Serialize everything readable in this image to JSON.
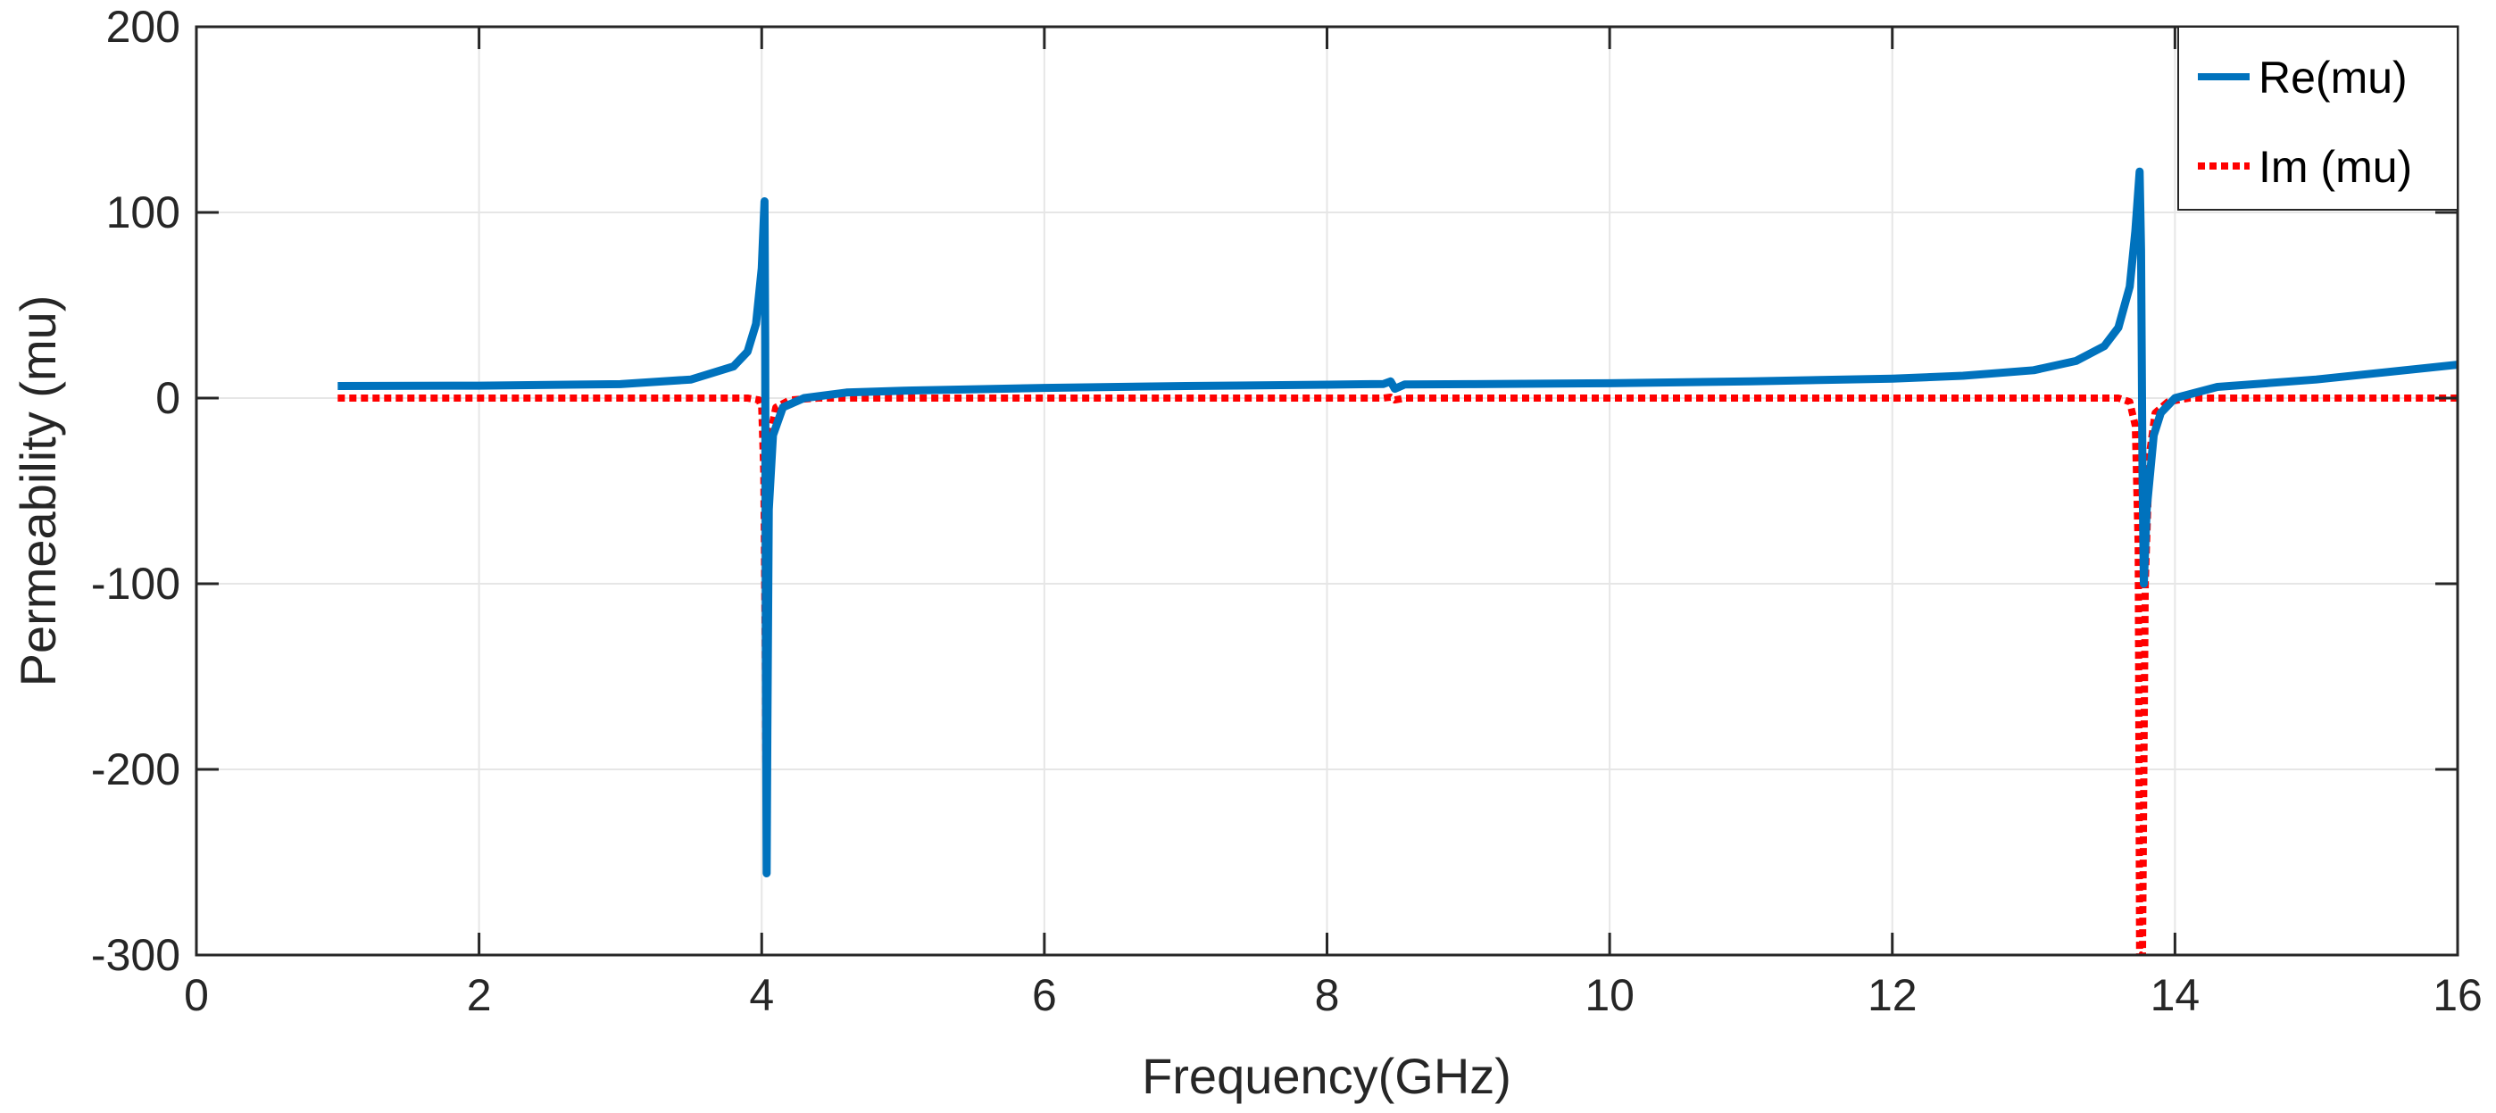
{
  "chart_data": {
    "type": "line",
    "xlabel": "Frequency(GHz)",
    "ylabel": "Permeability (mu)",
    "xlim": [
      0,
      16
    ],
    "ylim": [
      -300,
      200
    ],
    "xticks": [
      "0",
      "2",
      "4",
      "6",
      "8",
      "10",
      "12",
      "14",
      "16"
    ],
    "yticks": [
      "200",
      "100",
      "0",
      "-100",
      "-200",
      "-300"
    ],
    "grid": true,
    "legend_position": "top-right",
    "series": [
      {
        "name": "Re(mu)",
        "style": "solid",
        "color": "#0072BD",
        "points": [
          [
            1.0,
            6.5
          ],
          [
            2.0,
            6.7
          ],
          [
            3.0,
            7.5
          ],
          [
            3.5,
            10
          ],
          [
            3.8,
            17
          ],
          [
            3.9,
            25
          ],
          [
            3.96,
            40
          ],
          [
            4.0,
            70
          ],
          [
            4.02,
            106
          ],
          [
            4.025,
            30
          ],
          [
            4.03,
            -150
          ],
          [
            4.035,
            -256
          ],
          [
            4.04,
            -180
          ],
          [
            4.05,
            -60
          ],
          [
            4.08,
            -20
          ],
          [
            4.15,
            -5
          ],
          [
            4.3,
            0
          ],
          [
            4.6,
            3
          ],
          [
            5.0,
            4
          ],
          [
            6.0,
            5.5
          ],
          [
            7.0,
            6.5
          ],
          [
            8.0,
            7.2
          ],
          [
            8.4,
            7.6
          ],
          [
            8.45,
            9
          ],
          [
            8.48,
            5
          ],
          [
            8.55,
            7.3
          ],
          [
            9.0,
            7.5
          ],
          [
            10.0,
            8
          ],
          [
            11.0,
            9
          ],
          [
            12.0,
            10.5
          ],
          [
            12.5,
            12
          ],
          [
            13.0,
            15
          ],
          [
            13.3,
            20
          ],
          [
            13.5,
            28
          ],
          [
            13.6,
            38
          ],
          [
            13.68,
            60
          ],
          [
            13.72,
            90
          ],
          [
            13.75,
            122
          ],
          [
            13.76,
            80
          ],
          [
            13.77,
            -40
          ],
          [
            13.78,
            -100
          ],
          [
            13.8,
            -60
          ],
          [
            13.85,
            -20
          ],
          [
            13.9,
            -8
          ],
          [
            14.0,
            0
          ],
          [
            14.3,
            6
          ],
          [
            15.0,
            10
          ],
          [
            16.0,
            18
          ]
        ]
      },
      {
        "name": "Im (mu)",
        "style": "dotted",
        "color": "#FF0000",
        "points": [
          [
            1.0,
            0
          ],
          [
            3.9,
            0
          ],
          [
            3.98,
            -1
          ],
          [
            4.0,
            -5
          ],
          [
            4.015,
            -40
          ],
          [
            4.025,
            -130
          ],
          [
            4.03,
            -200
          ],
          [
            4.035,
            -150
          ],
          [
            4.045,
            -60
          ],
          [
            4.06,
            -20
          ],
          [
            4.1,
            -5
          ],
          [
            4.2,
            -1
          ],
          [
            4.4,
            0
          ],
          [
            8.4,
            0
          ],
          [
            8.45,
            0.5
          ],
          [
            8.48,
            -1
          ],
          [
            8.55,
            0
          ],
          [
            13.6,
            0
          ],
          [
            13.68,
            -2
          ],
          [
            13.72,
            -15
          ],
          [
            13.74,
            -80
          ],
          [
            13.75,
            -300
          ],
          [
            13.77,
            -300
          ],
          [
            13.79,
            -100
          ],
          [
            13.82,
            -30
          ],
          [
            13.86,
            -8
          ],
          [
            13.95,
            -2
          ],
          [
            14.1,
            0
          ],
          [
            16.0,
            0
          ]
        ]
      }
    ]
  }
}
